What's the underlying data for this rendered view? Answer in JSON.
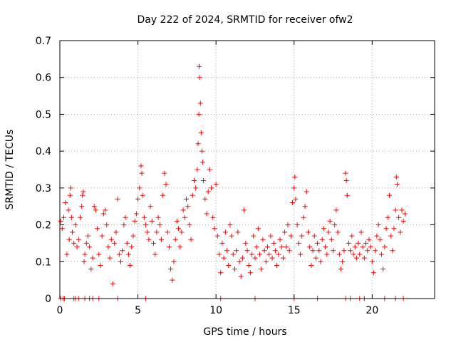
{
  "chart_data": {
    "type": "scatter",
    "title": "Day 222 of 2024, SRMTID for receiver ofw2",
    "xlabel": "GPS time / hours",
    "ylabel": "SRMTID / TECUs",
    "xlim": [
      0,
      24
    ],
    "ylim": [
      0,
      0.7
    ],
    "x_ticks": [
      0,
      5,
      10,
      15,
      20
    ],
    "y_ticks": [
      0,
      0.1,
      0.2,
      0.3,
      0.4,
      0.5,
      0.6,
      0.7
    ],
    "x_tick_labels": [
      "0",
      "5",
      "10",
      "15",
      "20"
    ],
    "y_tick_labels": [
      "0",
      "0.1",
      "0.2",
      "0.3",
      "0.4",
      "0.5",
      "0.6",
      "0.7"
    ],
    "grid": true,
    "marker": "+",
    "series_color": "#ff0000",
    "series": [
      {
        "name": "SRMTID",
        "points": [
          [
            0.05,
            0.21
          ],
          [
            0.15,
            0.19
          ],
          [
            0.25,
            0.22
          ],
          [
            0.35,
            0.26
          ],
          [
            0.45,
            0.12
          ],
          [
            0.55,
            0.24
          ],
          [
            0.6,
            0.16
          ],
          [
            0.65,
            0.28
          ],
          [
            0.7,
            0.3
          ],
          [
            0.75,
            0.22
          ],
          [
            0.8,
            0.18
          ],
          [
            0.9,
            0.15
          ],
          [
            1.0,
            0.2
          ],
          [
            1.1,
            0.14
          ],
          [
            1.2,
            0.16
          ],
          [
            1.3,
            0.22
          ],
          [
            1.4,
            0.25
          ],
          [
            1.45,
            0.28
          ],
          [
            1.5,
            0.29
          ],
          [
            1.55,
            0.1
          ],
          [
            1.6,
            0.12
          ],
          [
            1.7,
            0.15
          ],
          [
            1.8,
            0.17
          ],
          [
            1.9,
            0.14
          ],
          [
            2.0,
            0.08
          ],
          [
            2.1,
            0.11
          ],
          [
            2.2,
            0.25
          ],
          [
            2.3,
            0.24
          ],
          [
            2.4,
            0.19
          ],
          [
            2.5,
            0.12
          ],
          [
            2.6,
            0.09
          ],
          [
            2.7,
            0.17
          ],
          [
            2.8,
            0.23
          ],
          [
            2.9,
            0.24
          ],
          [
            3.0,
            0.2
          ],
          [
            3.1,
            0.14
          ],
          [
            3.2,
            0.11
          ],
          [
            3.3,
            0.16
          ],
          [
            3.4,
            0.04
          ],
          [
            3.5,
            0.15
          ],
          [
            3.6,
            0.18
          ],
          [
            3.7,
            0.27
          ],
          [
            3.8,
            0.12
          ],
          [
            3.9,
            0.1
          ],
          [
            4.0,
            0.13
          ],
          [
            4.1,
            0.2
          ],
          [
            4.2,
            0.22
          ],
          [
            4.3,
            0.15
          ],
          [
            4.4,
            0.12
          ],
          [
            4.5,
            0.09
          ],
          [
            4.6,
            0.14
          ],
          [
            4.7,
            0.17
          ],
          [
            4.8,
            0.21
          ],
          [
            4.9,
            0.23
          ],
          [
            5.0,
            0.27
          ],
          [
            5.1,
            0.3
          ],
          [
            5.2,
            0.36
          ],
          [
            5.25,
            0.34
          ],
          [
            5.3,
            0.28
          ],
          [
            5.4,
            0.22
          ],
          [
            5.5,
            0.2
          ],
          [
            5.6,
            0.18
          ],
          [
            5.7,
            0.16
          ],
          [
            5.8,
            0.25
          ],
          [
            5.9,
            0.21
          ],
          [
            6.0,
            0.15
          ],
          [
            6.1,
            0.12
          ],
          [
            6.2,
            0.18
          ],
          [
            6.3,
            0.22
          ],
          [
            6.4,
            0.2
          ],
          [
            6.5,
            0.16
          ],
          [
            6.6,
            0.28
          ],
          [
            6.7,
            0.34
          ],
          [
            6.8,
            0.31
          ],
          [
            6.9,
            0.18
          ],
          [
            7.0,
            0.14
          ],
          [
            7.1,
            0.08
          ],
          [
            7.2,
            0.05
          ],
          [
            7.3,
            0.1
          ],
          [
            7.4,
            0.16
          ],
          [
            7.5,
            0.21
          ],
          [
            7.6,
            0.19
          ],
          [
            7.7,
            0.14
          ],
          [
            7.8,
            0.18
          ],
          [
            7.9,
            0.24
          ],
          [
            8.0,
            0.22
          ],
          [
            8.1,
            0.27
          ],
          [
            8.2,
            0.25
          ],
          [
            8.3,
            0.2
          ],
          [
            8.4,
            0.16
          ],
          [
            8.5,
            0.28
          ],
          [
            8.6,
            0.32
          ],
          [
            8.7,
            0.3
          ],
          [
            8.8,
            0.35
          ],
          [
            8.85,
            0.42
          ],
          [
            8.9,
            0.5
          ],
          [
            8.92,
            0.63
          ],
          [
            8.95,
            0.6
          ],
          [
            9.0,
            0.53
          ],
          [
            9.05,
            0.45
          ],
          [
            9.1,
            0.4
          ],
          [
            9.15,
            0.37
          ],
          [
            9.2,
            0.32
          ],
          [
            9.3,
            0.27
          ],
          [
            9.4,
            0.23
          ],
          [
            9.5,
            0.29
          ],
          [
            9.6,
            0.35
          ],
          [
            9.7,
            0.3
          ],
          [
            9.8,
            0.22
          ],
          [
            9.9,
            0.19
          ],
          [
            10.0,
            0.31
          ],
          [
            10.1,
            0.17
          ],
          [
            10.2,
            0.12
          ],
          [
            10.3,
            0.07
          ],
          [
            10.4,
            0.15
          ],
          [
            10.5,
            0.11
          ],
          [
            10.6,
            0.18
          ],
          [
            10.7,
            0.13
          ],
          [
            10.8,
            0.09
          ],
          [
            10.9,
            0.2
          ],
          [
            11.0,
            0.17
          ],
          [
            11.1,
            0.12
          ],
          [
            11.2,
            0.08
          ],
          [
            11.3,
            0.13
          ],
          [
            11.4,
            0.18
          ],
          [
            11.5,
            0.1
          ],
          [
            11.6,
            0.06
          ],
          [
            11.7,
            0.11
          ],
          [
            11.8,
            0.24
          ],
          [
            11.9,
            0.15
          ],
          [
            12.0,
            0.13
          ],
          [
            12.1,
            0.09
          ],
          [
            12.2,
            0.07
          ],
          [
            12.3,
            0.12
          ],
          [
            12.4,
            0.17
          ],
          [
            12.5,
            0.11
          ],
          [
            12.6,
            0.14
          ],
          [
            12.7,
            0.19
          ],
          [
            12.8,
            0.12
          ],
          [
            12.9,
            0.08
          ],
          [
            13.0,
            0.16
          ],
          [
            13.1,
            0.13
          ],
          [
            13.2,
            0.1
          ],
          [
            13.3,
            0.14
          ],
          [
            13.4,
            0.12
          ],
          [
            13.5,
            0.17
          ],
          [
            13.6,
            0.11
          ],
          [
            13.7,
            0.15
          ],
          [
            13.8,
            0.13
          ],
          [
            13.9,
            0.09
          ],
          [
            14.0,
            0.12
          ],
          [
            14.1,
            0.16
          ],
          [
            14.2,
            0.14
          ],
          [
            14.3,
            0.11
          ],
          [
            14.4,
            0.18
          ],
          [
            14.5,
            0.14
          ],
          [
            14.6,
            0.2
          ],
          [
            14.7,
            0.13
          ],
          [
            14.8,
            0.17
          ],
          [
            14.9,
            0.26
          ],
          [
            15.0,
            0.3
          ],
          [
            15.05,
            0.33
          ],
          [
            15.1,
            0.27
          ],
          [
            15.2,
            0.2
          ],
          [
            15.3,
            0.15
          ],
          [
            15.4,
            0.12
          ],
          [
            15.5,
            0.17
          ],
          [
            15.6,
            0.22
          ],
          [
            15.7,
            0.25
          ],
          [
            15.8,
            0.29
          ],
          [
            15.9,
            0.18
          ],
          [
            16.0,
            0.14
          ],
          [
            16.1,
            0.09
          ],
          [
            16.2,
            0.13
          ],
          [
            16.3,
            0.17
          ],
          [
            16.4,
            0.11
          ],
          [
            16.5,
            0.15
          ],
          [
            16.6,
            0.13
          ],
          [
            16.7,
            0.1
          ],
          [
            16.8,
            0.16
          ],
          [
            16.9,
            0.19
          ],
          [
            17.0,
            0.14
          ],
          [
            17.1,
            0.12
          ],
          [
            17.2,
            0.18
          ],
          [
            17.3,
            0.21
          ],
          [
            17.4,
            0.16
          ],
          [
            17.5,
            0.13
          ],
          [
            17.6,
            0.2
          ],
          [
            17.7,
            0.24
          ],
          [
            17.8,
            0.18
          ],
          [
            17.9,
            0.12
          ],
          [
            18.0,
            0.08
          ],
          [
            18.1,
            0.1
          ],
          [
            18.2,
            0.13
          ],
          [
            18.3,
            0.34
          ],
          [
            18.35,
            0.32
          ],
          [
            18.4,
            0.28
          ],
          [
            18.5,
            0.15
          ],
          [
            18.6,
            0.13
          ],
          [
            18.7,
            0.17
          ],
          [
            18.8,
            0.12
          ],
          [
            18.9,
            0.14
          ],
          [
            19.0,
            0.11
          ],
          [
            19.1,
            0.15
          ],
          [
            19.2,
            0.12
          ],
          [
            19.3,
            0.18
          ],
          [
            19.4,
            0.14
          ],
          [
            19.5,
            0.11
          ],
          [
            19.6,
            0.15
          ],
          [
            19.7,
            0.13
          ],
          [
            19.8,
            0.16
          ],
          [
            19.9,
            0.14
          ],
          [
            20.0,
            0.1
          ],
          [
            20.1,
            0.07
          ],
          [
            20.2,
            0.13
          ],
          [
            20.3,
            0.17
          ],
          [
            20.4,
            0.2
          ],
          [
            20.5,
            0.16
          ],
          [
            20.6,
            0.12
          ],
          [
            20.7,
            0.08
          ],
          [
            20.8,
            0.14
          ],
          [
            20.9,
            0.19
          ],
          [
            21.0,
            0.22
          ],
          [
            21.1,
            0.28
          ],
          [
            21.2,
            0.17
          ],
          [
            21.3,
            0.13
          ],
          [
            21.4,
            0.19
          ],
          [
            21.5,
            0.24
          ],
          [
            21.55,
            0.33
          ],
          [
            21.6,
            0.31
          ],
          [
            21.7,
            0.22
          ],
          [
            21.8,
            0.18
          ],
          [
            21.9,
            0.24
          ],
          [
            22.0,
            0.21
          ],
          [
            22.1,
            0.23
          ],
          [
            0.05,
            0
          ],
          [
            0.2,
            0
          ],
          [
            0.3,
            0
          ],
          [
            0.9,
            0
          ],
          [
            1.0,
            0
          ],
          [
            1.2,
            0
          ],
          [
            1.6,
            0
          ],
          [
            1.9,
            0
          ],
          [
            2.1,
            0
          ],
          [
            2.5,
            0
          ],
          [
            3.7,
            0
          ],
          [
            5.5,
            0
          ],
          [
            10.3,
            0
          ],
          [
            12.5,
            0
          ],
          [
            15.0,
            0
          ],
          [
            16.5,
            0
          ],
          [
            18.3,
            0
          ],
          [
            18.6,
            0
          ],
          [
            19.2,
            0
          ],
          [
            19.5,
            0
          ],
          [
            20.8,
            0
          ],
          [
            21.5,
            0
          ],
          [
            22.0,
            0
          ]
        ]
      }
    ]
  }
}
